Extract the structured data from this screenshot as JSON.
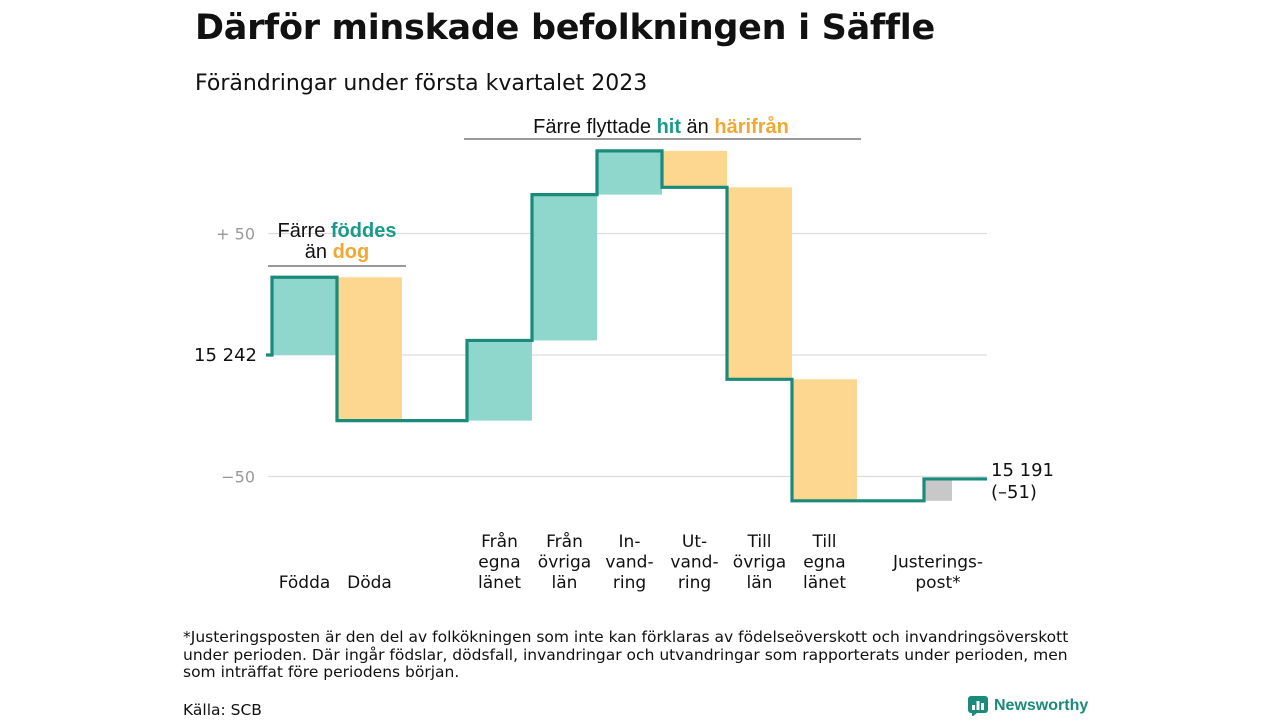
{
  "title": "Därför minskade befolkningen i Säffle",
  "subtitle": "Förändringar under första kvartalet 2023",
  "colors": {
    "in": "#8fd6cc",
    "out": "#fdd78f",
    "adjust": "#c8c8c8",
    "line": "#1a8a7a",
    "accent_teal": "#1a9a8a",
    "accent_orange": "#f0a832",
    "grid": "#dddddd",
    "tick": "#999999"
  },
  "chart_data": {
    "type": "waterfall",
    "start_value": 15242,
    "start_label": "15 242",
    "end_value": 15191,
    "end_label_lines": [
      "15 191",
      "(–51)"
    ],
    "y_ticks": [
      {
        "value": 50,
        "label": "+ 50"
      },
      {
        "value": 0,
        "label": ""
      },
      {
        "value": -50,
        "label": "−50"
      }
    ],
    "ylim": [
      -65,
      90
    ],
    "steps": [
      {
        "label_lines": [
          "Födda"
        ],
        "change": 32,
        "kind": "in"
      },
      {
        "label_lines": [
          "Döda"
        ],
        "change": -59,
        "kind": "out"
      },
      {
        "label_lines": [],
        "change": 0,
        "kind": "gap"
      },
      {
        "label_lines": [
          "Från",
          "egna",
          "länet"
        ],
        "change": 33,
        "kind": "in"
      },
      {
        "label_lines": [
          "Från",
          "övriga",
          "län"
        ],
        "change": 60,
        "kind": "in"
      },
      {
        "label_lines": [
          "In-",
          "vand-",
          "ring"
        ],
        "change": 18,
        "kind": "in"
      },
      {
        "label_lines": [
          "Ut-",
          "vand-",
          "ring"
        ],
        "change": -15,
        "kind": "out"
      },
      {
        "label_lines": [
          "Till",
          "övriga",
          "län"
        ],
        "change": -79,
        "kind": "out"
      },
      {
        "label_lines": [
          "Till",
          "egna",
          "länet"
        ],
        "change": -50,
        "kind": "out"
      },
      {
        "label_lines": [],
        "change": 0,
        "kind": "gap"
      },
      {
        "label_lines": [
          "Justerings-",
          "post*"
        ],
        "change": 9,
        "kind": "adjust"
      }
    ],
    "annotations": [
      {
        "lines": [
          [
            {
              "text": "Färre ",
              "style": "plain"
            },
            {
              "text": "föddes",
              "style": "teal"
            }
          ],
          [
            {
              "text": "än ",
              "style": "plain"
            },
            {
              "text": "dog",
              "style": "orange"
            }
          ]
        ]
      },
      {
        "lines": [
          [
            {
              "text": "Färre flyttade ",
              "style": "plain"
            },
            {
              "text": "hit",
              "style": "teal"
            },
            {
              "text": " än ",
              "style": "plain"
            },
            {
              "text": "härifrån",
              "style": "orange"
            }
          ]
        ]
      }
    ]
  },
  "footnote": "*Justeringsposten är den del av folkökningen som inte kan förklaras av födelseöverskott och invandringsöverskott under perioden. Där ingår födslar, dödsfall, invandringar och utvandringar som rapporterats under perioden, men som inträffat före periodens början.",
  "source": "Källa: SCB",
  "brand": "Newsworthy",
  "brand_icon": "bar-chart-logo-icon"
}
